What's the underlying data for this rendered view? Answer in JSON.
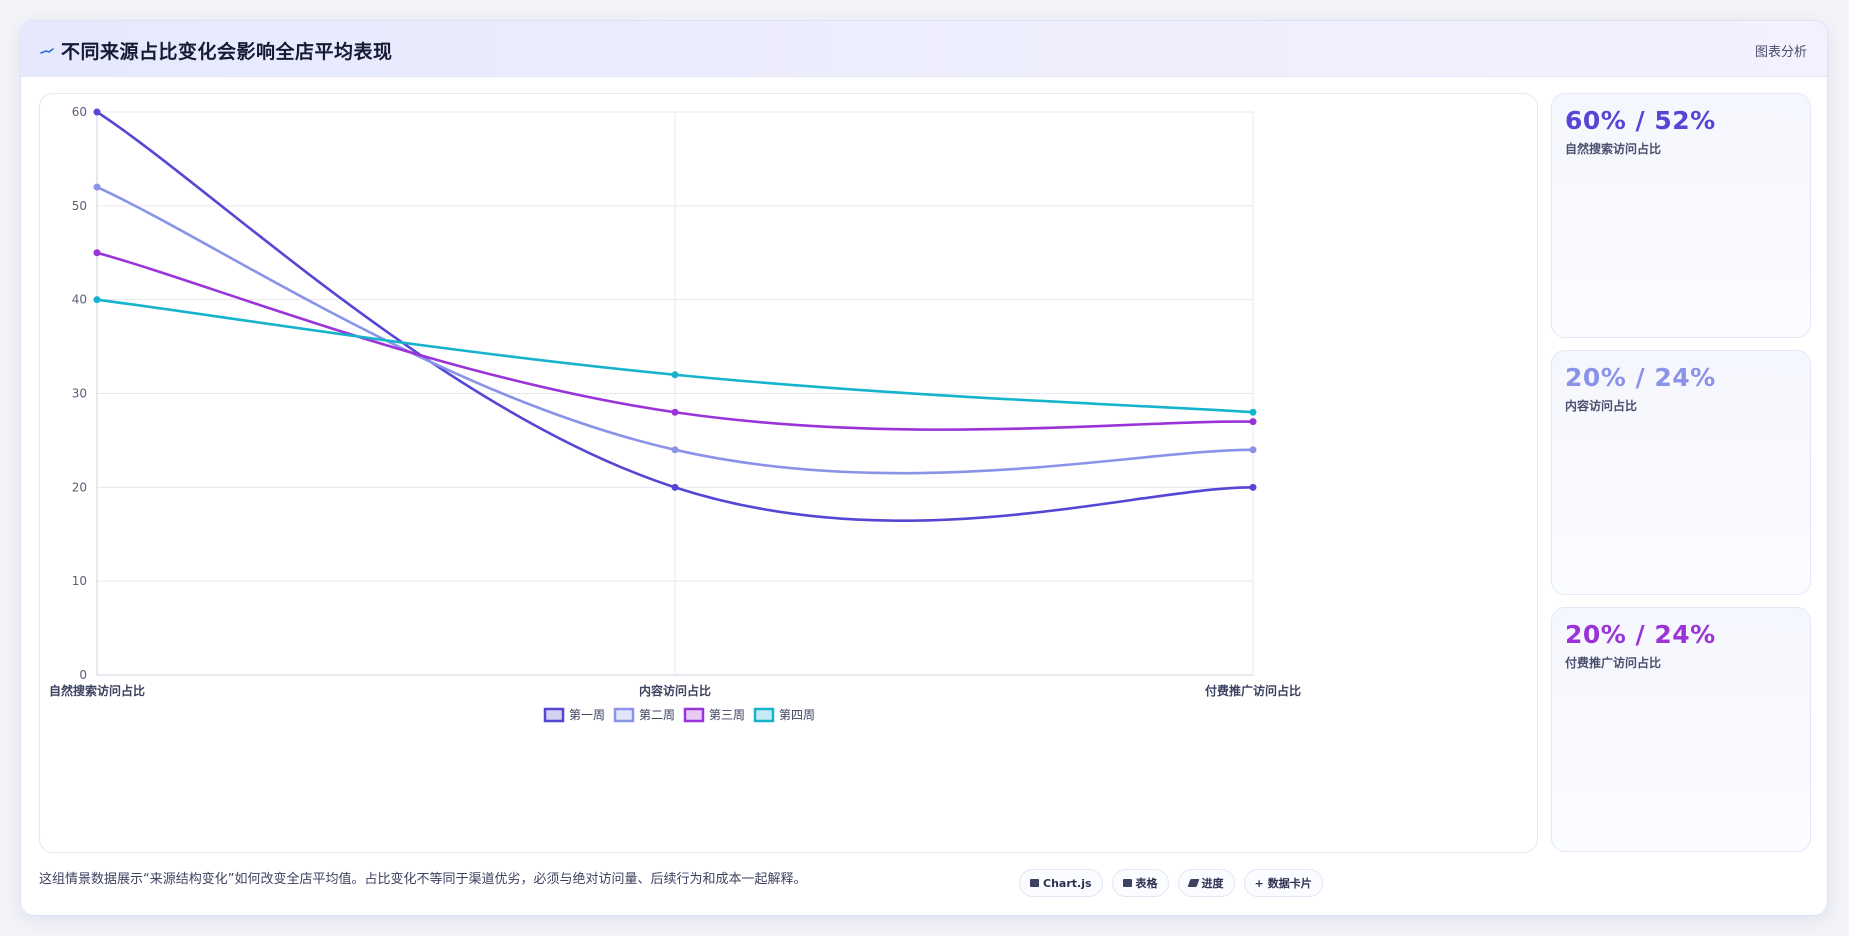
{
  "header": {
    "title": "不同来源占比变化会影响全店平均表现",
    "tag": "图表分析",
    "icon": "chart-line-icon"
  },
  "chart_data": {
    "type": "line",
    "categories": [
      "自然搜索访问占比",
      "内容访问占比",
      "付费推广访问占比"
    ],
    "series": [
      {
        "name": "第一周",
        "values": [
          60,
          20,
          20
        ],
        "color": "#5546d4"
      },
      {
        "name": "第二周",
        "values": [
          52,
          24,
          24
        ],
        "color": "#8a93e8"
      },
      {
        "name": "第三周",
        "values": [
          45,
          28,
          27
        ],
        "color": "#9a34d8"
      },
      {
        "name": "第四周",
        "values": [
          40,
          32,
          28
        ],
        "color": "#16b3cc"
      }
    ],
    "ylim": [
      0,
      60
    ],
    "yticks": [
      0,
      10,
      20,
      30,
      40,
      50,
      60
    ],
    "grid": true,
    "legend": "bottom"
  },
  "side_cards": [
    {
      "value": "60% / 52%",
      "label": "自然搜索访问占比",
      "color": "#5546d4"
    },
    {
      "value": "20% / 24%",
      "label": "内容访问占比",
      "color": "#8a93e8"
    },
    {
      "value": "20% / 24%",
      "label": "付费推广访问占比",
      "color": "#9a34d8"
    }
  ],
  "footer": {
    "note": "这组情景数据展示“来源结构变化”如何改变全店平均值。占比变化不等同于渠道优劣，必须与绝对访问量、后续行为和成本一起解释。",
    "pills": [
      {
        "label": "Chart.js",
        "icon": "chart-icon"
      },
      {
        "label": "表格",
        "icon": "table-icon"
      },
      {
        "label": "进度",
        "icon": "progress-icon"
      },
      {
        "label": "数据卡片",
        "icon": "card-icon"
      }
    ]
  }
}
